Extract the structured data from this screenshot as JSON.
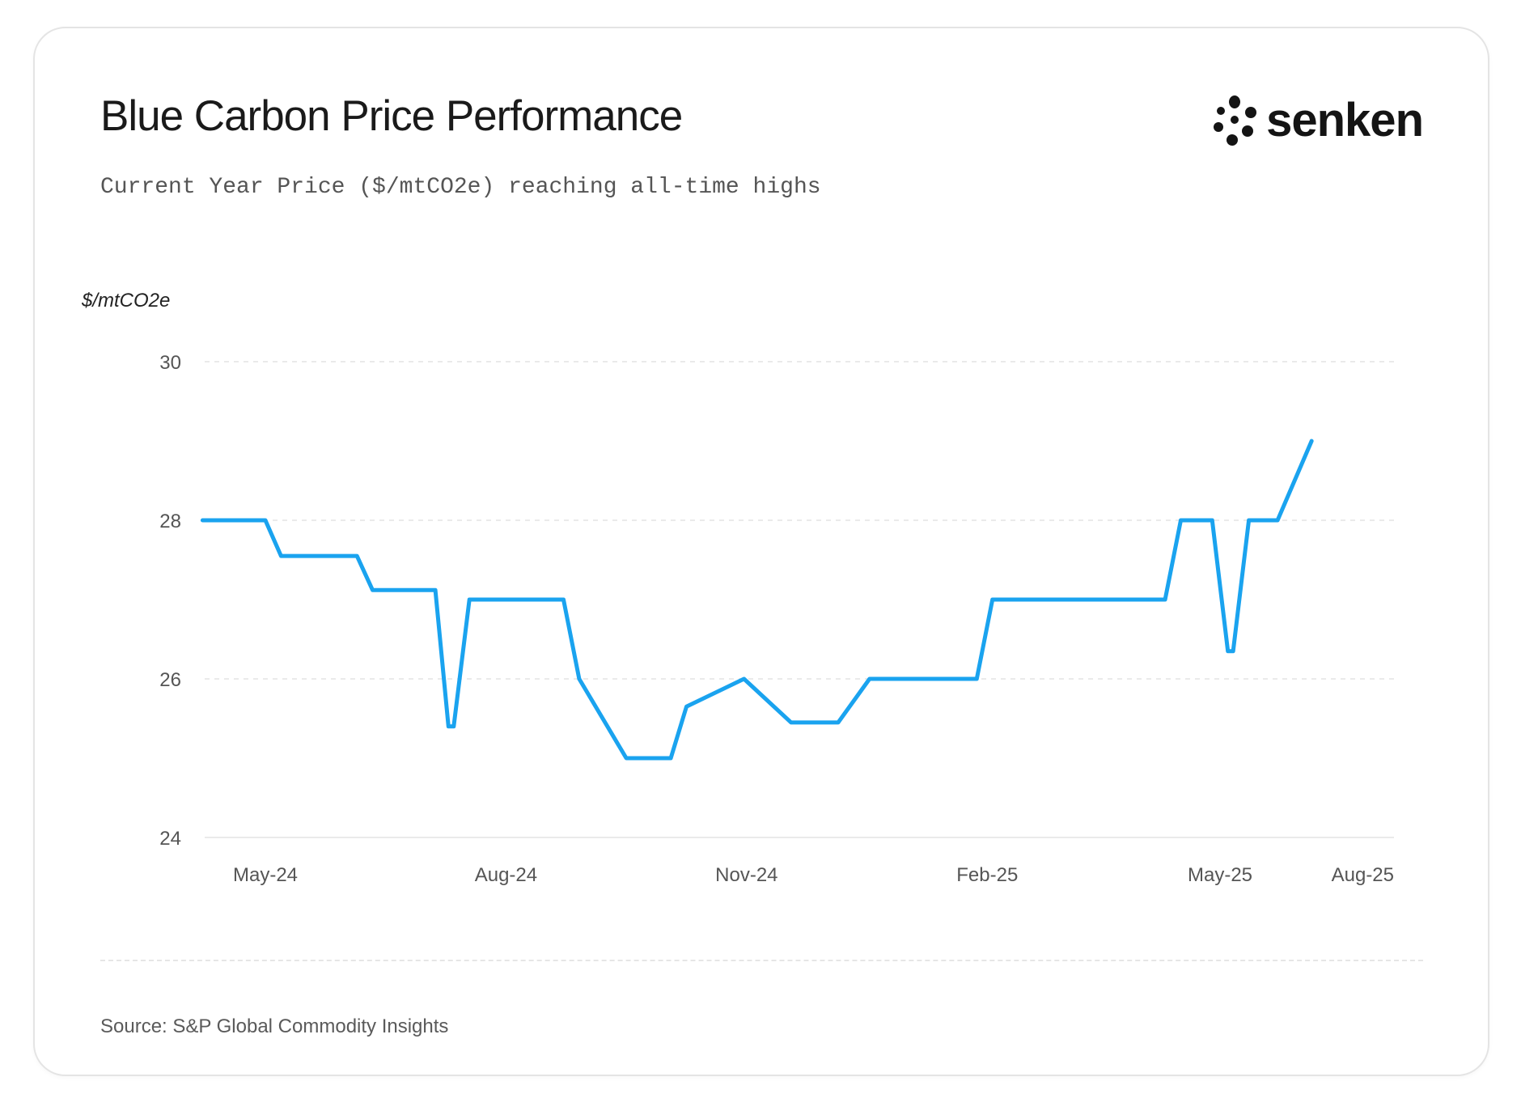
{
  "header": {
    "title": "Blue Carbon Price Performance",
    "subtitle": "Current Year Price ($/mtCO2e) reaching all-time highs",
    "logo_text": "senken",
    "logo_icon": "senken-flower-icon"
  },
  "footer": {
    "source": "Source: S&P Global Commodity Insights"
  },
  "colors": {
    "line": "#1aa3ef",
    "grid": "#e3e3e3",
    "axis_text": "#555555",
    "logo": "#141414"
  },
  "chart_data": {
    "type": "line",
    "title": "",
    "xlabel": "",
    "ylabel": "$/mtCO2e",
    "ylim": [
      24,
      30
    ],
    "yticks": [
      24,
      26,
      28,
      30
    ],
    "xticks": [
      "May-24",
      "Aug-24",
      "Nov-24",
      "Feb-25",
      "May-25",
      "Aug-25"
    ],
    "grid": "horizontal dashed",
    "series": [
      {
        "points": [
          [
            "2024-04-07",
            28.0
          ],
          [
            "2024-05-01",
            28.0
          ],
          [
            "2024-05-07",
            27.55
          ],
          [
            "2024-06-05",
            27.55
          ],
          [
            "2024-06-11",
            27.12
          ],
          [
            "2024-07-05",
            27.12
          ],
          [
            "2024-07-10",
            25.4
          ],
          [
            "2024-07-12",
            25.4
          ],
          [
            "2024-07-18",
            27.0
          ],
          [
            "2024-08-23",
            27.0
          ],
          [
            "2024-08-29",
            26.0
          ],
          [
            "2024-09-16",
            25.0
          ],
          [
            "2024-10-03",
            25.0
          ],
          [
            "2024-10-09",
            25.65
          ],
          [
            "2024-10-31",
            26.0
          ],
          [
            "2024-11-18",
            25.45
          ],
          [
            "2024-12-06",
            25.45
          ],
          [
            "2024-12-18",
            26.0
          ],
          [
            "2025-01-28",
            26.0
          ],
          [
            "2025-02-03",
            27.0
          ],
          [
            "2025-04-10",
            27.0
          ],
          [
            "2025-04-16",
            28.0
          ],
          [
            "2025-04-28",
            28.0
          ],
          [
            "2025-05-04",
            26.35
          ],
          [
            "2025-05-06",
            26.35
          ],
          [
            "2025-05-12",
            28.0
          ],
          [
            "2025-05-23",
            28.0
          ],
          [
            "2025-06-05",
            29.0
          ]
        ]
      }
    ]
  }
}
